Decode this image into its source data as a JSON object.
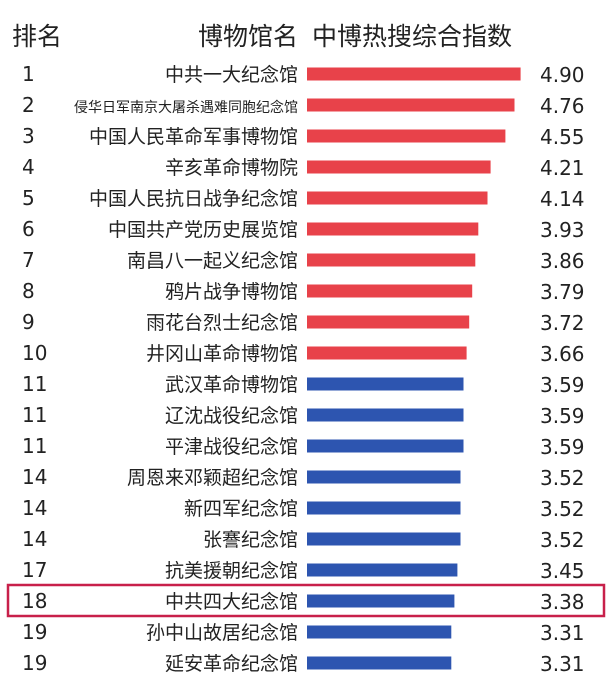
{
  "header": {
    "rank": "排名",
    "museum_name": "博物馆名",
    "index_name": "中博热搜综合指数"
  },
  "colors": {
    "top10_bar": "#e8424a",
    "other_bar": "#2d55b0",
    "highlight_border": "#c8204a"
  },
  "highlight_rank_row": 18,
  "chart_data": {
    "type": "bar",
    "orientation": "horizontal",
    "categories": [
      "中共一大纪念馆",
      "侵华日军南京大屠杀遇难同胞纪念馆",
      "中国人民革命军事博物馆",
      "辛亥革命博物院",
      "中国人民抗日战争纪念馆",
      "中国共产党历史展览馆",
      "南昌八一起义纪念馆",
      "鸦片战争博物馆",
      "雨花台烈士纪念馆",
      "井冈山革命博物馆",
      "武汉革命博物馆",
      "辽沈战役纪念馆",
      "平津战役纪念馆",
      "周恩来邓颖超纪念馆",
      "新四军纪念馆",
      "张謇纪念馆",
      "抗美援朝纪念馆",
      "中共四大纪念馆",
      "孙中山故居纪念馆",
      "延安革命纪念馆"
    ],
    "ranks": [
      "1",
      "2",
      "3",
      "4",
      "5",
      "6",
      "7",
      "8",
      "9",
      "10",
      "11",
      "11",
      "11",
      "14",
      "14",
      "14",
      "17",
      "18",
      "19",
      "19"
    ],
    "values": [
      4.9,
      4.76,
      4.55,
      4.21,
      4.14,
      3.93,
      3.86,
      3.79,
      3.72,
      3.66,
      3.59,
      3.59,
      3.59,
      3.52,
      3.52,
      3.52,
      3.45,
      3.38,
      3.31,
      3.31
    ],
    "value_labels": [
      "4.90",
      "4.76",
      "4.55",
      "4.21",
      "4.14",
      "3.93",
      "3.86",
      "3.79",
      "3.72",
      "3.66",
      "3.59",
      "3.59",
      "3.59",
      "3.52",
      "3.52",
      "3.52",
      "3.45",
      "3.38",
      "3.31",
      "3.31"
    ],
    "title": "",
    "xlabel": "",
    "ylabel": ""
  }
}
